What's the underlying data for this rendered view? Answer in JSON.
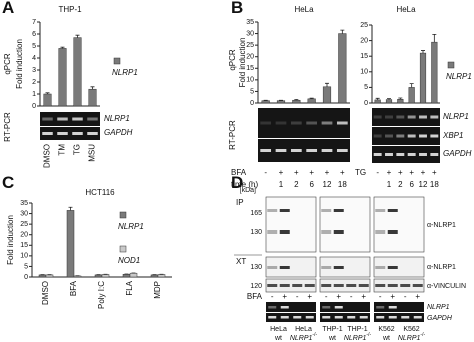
{
  "chart_data": [
    {
      "type": "bar",
      "title": "THP-1",
      "y_label": "Fold induction",
      "categories": [
        "DMSO",
        "TM",
        "TG",
        "MSU"
      ],
      "series": [
        {
          "name": "NLRP1",
          "color": "#7a7a7a",
          "values": [
            1.0,
            4.8,
            5.7,
            1.4
          ],
          "errors": [
            0.1,
            0.1,
            0.2,
            0.2
          ]
        }
      ],
      "ylim": [
        0,
        7
      ],
      "yticks": [
        0,
        1,
        2,
        3,
        4,
        5,
        6,
        7
      ]
    },
    {
      "type": "bar",
      "title": "HeLa",
      "y_label": "Fold induction",
      "x_label": "time (h)",
      "categories": [
        null,
        "1",
        "2",
        "6",
        "12",
        "18"
      ],
      "treatment": {
        "label": "BFA",
        "values": [
          "-",
          "+",
          "+",
          "+",
          "+",
          "+"
        ]
      },
      "series": [
        {
          "color": "#7a7a7a",
          "values": [
            1,
            1,
            1.2,
            1.8,
            7,
            30
          ],
          "errors": [
            0.2,
            0.2,
            0.3,
            0.3,
            1.5,
            1.5
          ]
        }
      ],
      "ylim": [
        0,
        35
      ],
      "yticks": [
        0,
        5,
        10,
        15,
        20,
        25,
        30,
        35
      ]
    },
    {
      "type": "bar",
      "title": "HeLa",
      "categories": [
        null,
        "1",
        "2",
        "6",
        "12",
        "18"
      ],
      "treatment": {
        "label": "TG",
        "values": [
          "-",
          "+",
          "+",
          "+",
          "+",
          "+"
        ]
      },
      "series": [
        {
          "name": "NLRP1",
          "color": "#7a7a7a",
          "values": [
            1,
            1.1,
            1.2,
            5,
            16,
            19.5
          ],
          "errors": [
            0.5,
            0.3,
            0.4,
            1.2,
            0.8,
            2.5
          ]
        }
      ],
      "ylim": [
        0,
        25
      ],
      "yticks": [
        0,
        5,
        10,
        15,
        20,
        25
      ]
    },
    {
      "type": "bar",
      "title": "HCT116",
      "y_label": "Fold induction",
      "categories": [
        "DMSO",
        "BFA",
        "Poly I:C",
        "FLA",
        "MDP"
      ],
      "series": [
        {
          "name": "NLRP1",
          "color": "#7a7a7a",
          "values": [
            1,
            31.5,
            1,
            1.3,
            1
          ],
          "errors": [
            0.1,
            1.5,
            0.1,
            0.1,
            0.1
          ]
        },
        {
          "name": "NOD1",
          "color": "#c9c9c9",
          "values": [
            1,
            0.5,
            1.2,
            1.8,
            1.2
          ],
          "errors": [
            0.1,
            0.1,
            0.1,
            0.1,
            0.1
          ]
        }
      ],
      "ylim": [
        0,
        35
      ],
      "yticks": [
        0,
        5,
        10,
        15,
        20,
        25,
        30,
        35
      ]
    }
  ],
  "figure": {
    "letters": [
      "A",
      "B",
      "C",
      "D"
    ],
    "side_labels": [
      "qPCR",
      "RT-PCR",
      "qPCR",
      "RT-PCR"
    ],
    "gel_labels_a": [
      "NLRP1",
      "GAPDH"
    ],
    "gel_labels_b": [
      "NLRP1",
      "XBP1",
      "GAPDH"
    ],
    "blot": {
      "kda_label": "[kDa]",
      "sections": [
        "IP",
        "XT"
      ],
      "ip_markers": [
        "165",
        "130"
      ],
      "xt_markers": [
        "130",
        "120"
      ],
      "antibodies": [
        "α-NLRP1",
        "α-NLRP1",
        "α-VINCULIN"
      ],
      "treatment_label": "BFA",
      "lanes": [
        "-",
        "+",
        "-",
        "+",
        "-",
        "+",
        "-",
        "+",
        "-",
        "+",
        "-",
        "+"
      ],
      "gels": [
        "NLRP1",
        "GAPDH"
      ],
      "cells": [
        {
          "line": "HeLa",
          "label": "wt"
        },
        {
          "line": "HeLa",
          "label": "NLRP1",
          "sup": "-/-"
        },
        {
          "line": "THP-1",
          "label": "wt"
        },
        {
          "line": "THP-1",
          "label": "NLRP1",
          "sup": "-/-"
        },
        {
          "line": "K562",
          "label": "wt"
        },
        {
          "line": "K562",
          "label": "NLRP1",
          "sup": "-/-"
        }
      ]
    }
  }
}
